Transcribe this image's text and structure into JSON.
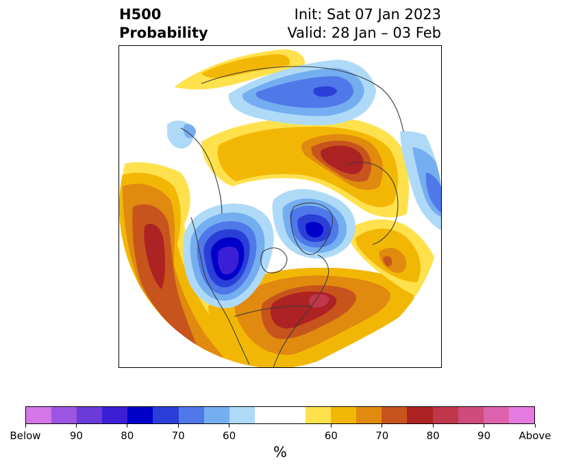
{
  "title": {
    "left_line1": "H500",
    "left_line2": "Probability",
    "right_line1": "Init: Sat 07 Jan 2023",
    "right_line2": "Valid: 28 Jan – 03 Feb"
  },
  "colorbar": {
    "unit": "%",
    "colors": [
      "#d576e8",
      "#9b55e0",
      "#6a3bd9",
      "#3b1fd6",
      "#0000c8",
      "#2a3fd8",
      "#4f78e8",
      "#75aef0",
      "#aedaf8",
      "#ffffff",
      "#ffffff",
      "#ffe14d",
      "#f2b705",
      "#e08a10",
      "#c7541d",
      "#ad2222",
      "#c0364a",
      "#cf4b7a",
      "#dc62ad",
      "#e57ae0"
    ],
    "tick_labels": [
      "Below",
      "90",
      "80",
      "70",
      "60",
      "60",
      "70",
      "80",
      "90",
      "Above"
    ]
  },
  "map": {
    "colors": {
      "blue_light": "#aedaf8",
      "blue_mid": "#75aef0",
      "blue": "#4f78e8",
      "blue_deep": "#2a3fd8",
      "blue_navy": "#0000c8",
      "blue_violet": "#3b1fd6",
      "yellow": "#ffe14d",
      "gold": "#f2b705",
      "orange": "#e08a10",
      "rust": "#c7541d",
      "red": "#ad2222",
      "rose": "#c0364a",
      "coast": "#3a3a3a"
    }
  }
}
